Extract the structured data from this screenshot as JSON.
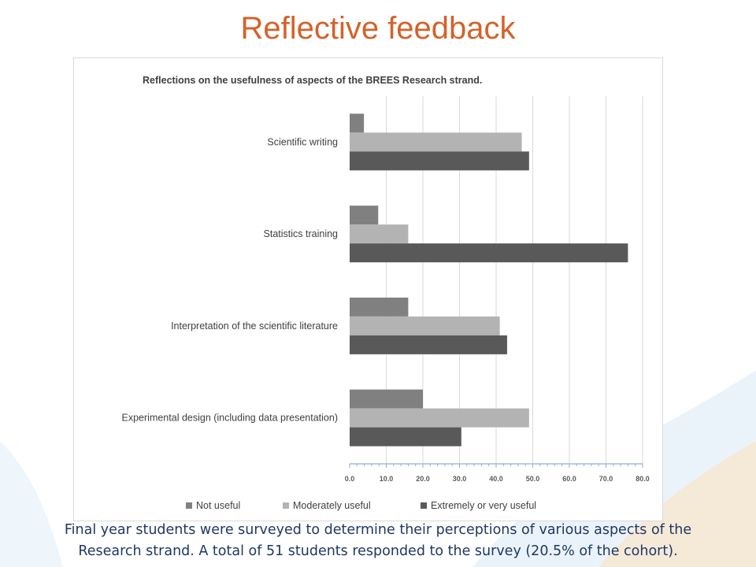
{
  "slide": {
    "title": "Reflective feedback",
    "caption_line1": "Final year students were surveyed to determine their perceptions of various aspects of the",
    "caption_line2": "Research strand.  A total of 51 students responded to the survey (20.5% of the cohort)."
  },
  "chart_data": {
    "type": "bar",
    "orientation": "horizontal",
    "title": "Reflections on the usefulness of aspects of the BREES Research strand.",
    "categories": [
      "Scientific writing",
      "Statistics training",
      "Interpretation of the scientific literature",
      "Experimental design (including data presentation)"
    ],
    "series": [
      {
        "name": "Not useful",
        "values": [
          3.9,
          7.8,
          16.0,
          20.0
        ],
        "color": "#808080"
      },
      {
        "name": "Moderately useful",
        "values": [
          47.0,
          16.0,
          41.0,
          49.0
        ],
        "color": "#b3b3b3"
      },
      {
        "name": "Extremely or very useful",
        "values": [
          49.0,
          76.0,
          43.0,
          30.5
        ],
        "color": "#595959"
      }
    ],
    "x_ticks": [
      "0.0",
      "10.0",
      "20.0",
      "30.0",
      "40.0",
      "50.0",
      "60.0",
      "70.0",
      "80.0"
    ],
    "xlim": [
      0,
      80
    ],
    "grid": true,
    "legend_position": "bottom"
  }
}
